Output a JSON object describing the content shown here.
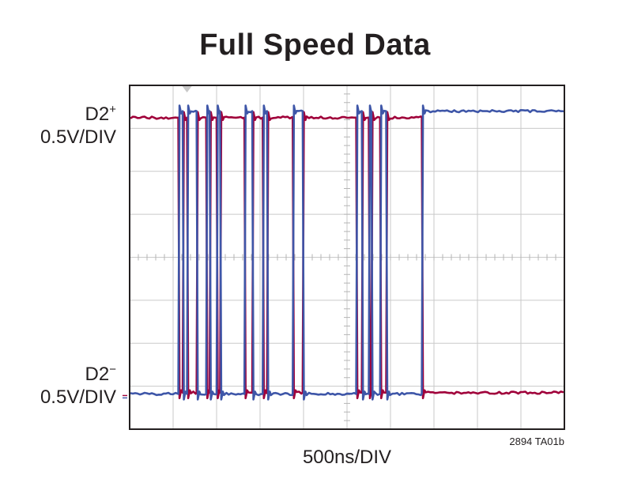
{
  "chart_data": {
    "type": "line",
    "title": "Full Speed Data",
    "xlabel": "500ns/DIV",
    "figure_id": "2894 TA01b",
    "grid": true,
    "x_divisions": 10,
    "y_divisions": 8,
    "xlim": [
      0,
      10
    ],
    "channels": [
      {
        "name": "D2+",
        "scale": "0.5V/DIV",
        "color": "#a0003a"
      },
      {
        "name": "D2−",
        "scale": "0.5V/DIV",
        "color": "#3e56a8"
      }
    ],
    "series": [
      {
        "name": "D2+",
        "color": "#a0003a",
        "high_level_div": 7.25,
        "low_level_div": 0.85,
        "initial_state": "high",
        "transitions": [
          1.12,
          1.22,
          1.32,
          1.54,
          1.76,
          1.84,
          2.0,
          2.08,
          2.64,
          2.82,
          3.06,
          3.16,
          3.75,
          3.98,
          5.21,
          5.34,
          5.5,
          5.56,
          5.76,
          5.9,
          6.72
        ],
        "final_state": "high"
      },
      {
        "name": "D2−",
        "color": "#3e56a8",
        "high_level_div": 7.4,
        "low_level_div": 0.82,
        "initial_state": "low",
        "transitions": [
          1.12,
          1.22,
          1.32,
          1.54,
          1.76,
          1.84,
          2.0,
          2.08,
          2.64,
          2.82,
          3.06,
          3.16,
          3.75,
          3.98,
          5.21,
          5.34,
          5.5,
          5.56,
          5.76,
          5.9,
          6.72
        ],
        "final_state": "low"
      }
    ]
  }
}
